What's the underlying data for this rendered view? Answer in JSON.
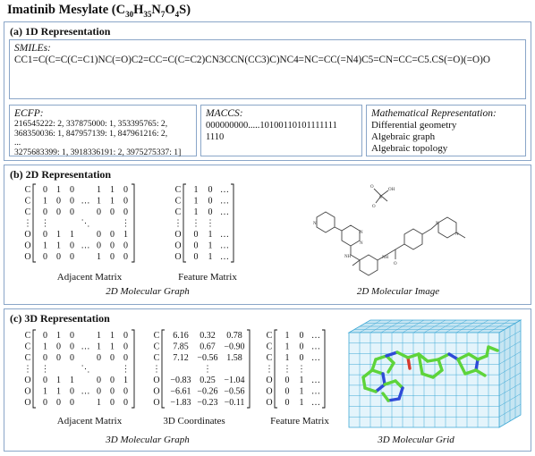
{
  "title_main": "Imatinib Mesylate (C",
  "formula_parts": [
    {
      "t": "30",
      "sub": true
    },
    {
      "t": "H",
      "sub": false
    },
    {
      "t": "35",
      "sub": true
    },
    {
      "t": "N",
      "sub": false
    },
    {
      "t": "7",
      "sub": true
    },
    {
      "t": "O",
      "sub": false
    },
    {
      "t": "4",
      "sub": true
    },
    {
      "t": "S)",
      "sub": false
    }
  ],
  "section_1d": {
    "heading": "(a) 1D Representation",
    "smiles_label": "SMILEs:",
    "smiles_value": "CC1=C(C=C(C=C1)NC(=O)C2=CC=C(C=C2)CN3CCN(CC3)C)NC4=NC=CC(=N4)C5=CN=CC=C5.CS(=O)(=O)O",
    "ecfp_label": "ECFP:",
    "ecfp_lines": [
      "216545222: 2, 337875000: 1, 353395765: 2,",
      "368350036: 1, 847957139: 1, 847961216: 2,",
      "...",
      "3275683399: 1, 3918336191: 2, 3975275337: 1]"
    ],
    "maccs_label": "MACCS:",
    "maccs_lines": [
      "000000000.....10100110101111111",
      "1110"
    ],
    "math_label": "Mathematical Representation:",
    "math_items": [
      "Differential geometry",
      "Algebraic graph",
      "Algebraic topology"
    ]
  },
  "section_2d": {
    "heading": "(b) 2D Representation",
    "adj_caption": "Adjacent Matrix",
    "feat_caption": "Feature Matrix",
    "graph_caption": "2D Molecular Graph",
    "image_caption": "2D Molecular Image"
  },
  "section_3d": {
    "heading": "(c) 3D Representation",
    "adj_caption": "Adjacent Matrix",
    "coord_caption": "3D Coordinates",
    "feat_caption": "Feature Matrix",
    "graph_caption": "3D Molecular Graph",
    "grid_caption": "3D Molecular Grid"
  },
  "matrices": {
    "atom_labels": [
      "C",
      "C",
      "C",
      "⋮",
      "O",
      "O",
      "O"
    ],
    "adjacent_rows": [
      [
        "0",
        "1",
        "0",
        "",
        "1",
        "1",
        "0"
      ],
      [
        "1",
        "0",
        "0",
        "…",
        "1",
        "1",
        "0"
      ],
      [
        "0",
        "0",
        "0",
        "",
        "0",
        "0",
        "0"
      ],
      [
        "⋮",
        "",
        "",
        "⋱",
        "",
        "",
        "⋮"
      ],
      [
        "0",
        "1",
        "1",
        "",
        "0",
        "0",
        "1"
      ],
      [
        "1",
        "1",
        "0",
        "…",
        "0",
        "0",
        "0"
      ],
      [
        "0",
        "0",
        "0",
        "",
        "1",
        "0",
        "0"
      ]
    ],
    "feature_rows": [
      [
        "1",
        "0",
        "…"
      ],
      [
        "1",
        "0",
        "…"
      ],
      [
        "1",
        "0",
        "…"
      ],
      [
        "⋮",
        "⋮",
        ""
      ],
      [
        "0",
        "1",
        "…"
      ],
      [
        "0",
        "1",
        "…"
      ],
      [
        "0",
        "1",
        "…"
      ]
    ],
    "coord_rows": [
      [
        "6.16",
        "0.32",
        "0.78"
      ],
      [
        "7.85",
        "0.67",
        "−0.90"
      ],
      [
        "7.12",
        "−0.56",
        "1.58"
      ],
      [
        "",
        "⋮",
        ""
      ],
      [
        "−0.83",
        "0.25",
        "−1.04"
      ],
      [
        "−6.61",
        "−0.26",
        "−0.56"
      ],
      [
        "−1.83",
        "−0.23",
        "−0.11"
      ]
    ]
  },
  "structure_labels": {
    "n_atoms": [
      "N",
      "N",
      "N",
      "N",
      "N",
      "N"
    ],
    "nh_labels": [
      "NH",
      "NH"
    ],
    "o_label": "O",
    "mesylate": [
      "O",
      "S",
      "OH",
      "O"
    ]
  },
  "colors": {
    "border": "#8aa6c8",
    "grid_line": "#3fa9d6",
    "grid_face": "#e4f4fb",
    "grid_side": "#c6e5f2",
    "carbon_green": "#5ed43a",
    "nitrogen_blue": "#2f4ad8",
    "oxygen_red": "#d63a2f"
  }
}
